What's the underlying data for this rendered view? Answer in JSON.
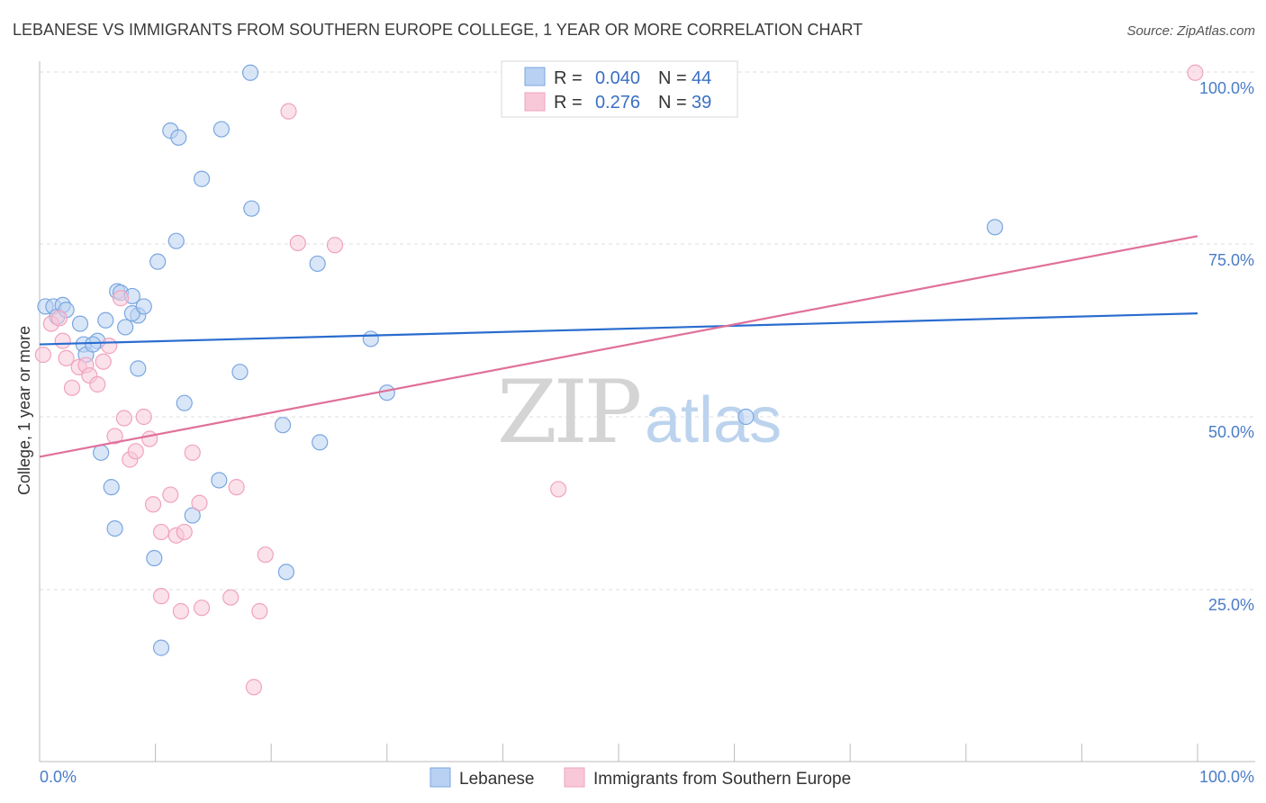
{
  "chart_data": {
    "type": "scatter",
    "title": "LEBANESE VS IMMIGRANTS FROM SOUTHERN EUROPE COLLEGE, 1 YEAR OR MORE CORRELATION CHART",
    "source": "Source: ZipAtlas.com",
    "ylabel": "College, 1 year or more",
    "xlabel": "",
    "xlim": [
      0,
      100
    ],
    "ylim": [
      0,
      100
    ],
    "x_tick_labels": {
      "min": "0.0%",
      "max": "100.0%"
    },
    "y_tick_labels": [
      {
        "value": 100,
        "label": "100.0%"
      },
      {
        "value": 75,
        "label": "75.0%"
      },
      {
        "value": 50,
        "label": "50.0%"
      },
      {
        "value": 25,
        "label": "25.0%"
      }
    ],
    "watermark": {
      "part1": "ZIP",
      "part2": "atlas"
    },
    "legend": {
      "r_label": "R =",
      "n_label": "N =",
      "rows": [
        {
          "series": "Lebanese",
          "r": "0.040",
          "n": "44"
        },
        {
          "series": "Immigrants from Southern Europe",
          "r": "0.276",
          "n": "39"
        }
      ]
    },
    "series": [
      {
        "name": "Lebanese",
        "color": "#7aa7e0",
        "fill": "#b9d1f2",
        "line_color": "#2a6ccf",
        "trend": {
          "y_at_0": 60.5,
          "y_at_100": 65.0
        },
        "points": [
          [
            0.5,
            66
          ],
          [
            1.2,
            66
          ],
          [
            1.5,
            64.5
          ],
          [
            2,
            66.2
          ],
          [
            2.3,
            65.5
          ],
          [
            3.5,
            63.5
          ],
          [
            3.8,
            60.5
          ],
          [
            4,
            59
          ],
          [
            5,
            61
          ],
          [
            4.6,
            60.5
          ],
          [
            6.7,
            68.2
          ],
          [
            7,
            68
          ],
          [
            5.7,
            64
          ],
          [
            8,
            67.5
          ],
          [
            7.4,
            63
          ],
          [
            8.5,
            64.7
          ],
          [
            8,
            65
          ],
          [
            8.5,
            57
          ],
          [
            9,
            66
          ],
          [
            10.2,
            72.5
          ],
          [
            11.3,
            91.5
          ],
          [
            12,
            90.5
          ],
          [
            11.8,
            75.5
          ],
          [
            14,
            84.5
          ],
          [
            15.7,
            91.7
          ],
          [
            18.2,
            99.9
          ],
          [
            18.3,
            80.2
          ],
          [
            12.5,
            52
          ],
          [
            17.3,
            56.5
          ],
          [
            24,
            72.2
          ],
          [
            28.6,
            61.3
          ],
          [
            30,
            53.5
          ],
          [
            5.3,
            44.8
          ],
          [
            6.2,
            39.8
          ],
          [
            6.5,
            33.8
          ],
          [
            9.9,
            29.5
          ],
          [
            10.5,
            16.5
          ],
          [
            13.2,
            35.7
          ],
          [
            15.5,
            40.8
          ],
          [
            21,
            48.8
          ],
          [
            24.2,
            46.3
          ],
          [
            21.3,
            27.5
          ],
          [
            61,
            50
          ],
          [
            82.5,
            77.5
          ]
        ]
      },
      {
        "name": "Immigrants from Southern Europe",
        "color": "#f0a3bd",
        "fill": "#f8c8d8",
        "line_color": "#e0709a",
        "trend": {
          "y_at_0": 44.2,
          "y_at_100": 76.2
        },
        "points": [
          [
            0.3,
            59
          ],
          [
            1,
            63.5
          ],
          [
            1.7,
            64.3
          ],
          [
            2,
            61
          ],
          [
            2.3,
            58.5
          ],
          [
            2.8,
            54.2
          ],
          [
            3.4,
            57.2
          ],
          [
            4,
            57.5
          ],
          [
            4.3,
            56
          ],
          [
            5,
            54.7
          ],
          [
            5.5,
            58
          ],
          [
            6,
            60.3
          ],
          [
            7,
            67.2
          ],
          [
            6.5,
            47.2
          ],
          [
            7.3,
            49.8
          ],
          [
            7.8,
            43.8
          ],
          [
            8.3,
            45
          ],
          [
            9,
            50
          ],
          [
            9.5,
            46.8
          ],
          [
            9.8,
            37.3
          ],
          [
            10.5,
            33.3
          ],
          [
            11.3,
            38.7
          ],
          [
            11.8,
            32.8
          ],
          [
            12.5,
            33.3
          ],
          [
            13.2,
            44.8
          ],
          [
            13.8,
            37.5
          ],
          [
            10.5,
            24
          ],
          [
            12.2,
            21.8
          ],
          [
            14,
            22.3
          ],
          [
            16.5,
            23.8
          ],
          [
            17,
            39.8
          ],
          [
            19,
            21.8
          ],
          [
            19.5,
            30
          ],
          [
            21.5,
            94.3
          ],
          [
            22.3,
            75.2
          ],
          [
            25.5,
            74.9
          ],
          [
            18.5,
            10.8
          ],
          [
            44.8,
            39.5
          ],
          [
            99.8,
            99.9
          ]
        ]
      }
    ]
  }
}
